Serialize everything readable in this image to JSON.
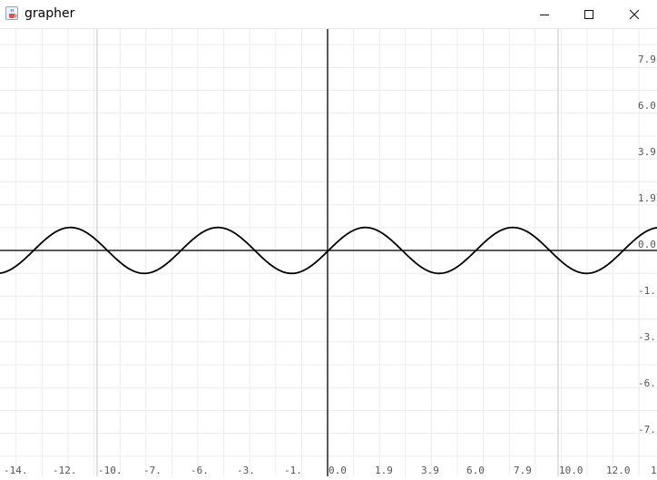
{
  "window": {
    "title": "grapher",
    "icons": {
      "app": "java-cup-icon",
      "minimize": "minimize-icon",
      "maximize": "maximize-icon",
      "close": "close-icon"
    }
  },
  "colors": {
    "curve": "#000000",
    "axis": "#222222",
    "major_grid": "#cfcfcf",
    "minor_grid": "#ececec",
    "label": "#555555"
  },
  "chart_data": {
    "type": "line",
    "title": "",
    "xlabel": "",
    "ylabel": "",
    "xlim": [
      -14.0,
      14.0
    ],
    "ylim": [
      -8.3,
      9.1
    ],
    "grid": true,
    "function": "y = sin(x)",
    "x_tick_labels": [
      "-14.",
      "-12.",
      "-10.",
      "-7.",
      "-6.",
      "-3.",
      "-1.",
      "0.0",
      "1.9",
      "3.9",
      "6.0",
      "7.9",
      "10.0",
      "12.0",
      "1"
    ],
    "y_tick_labels": [
      "7.9",
      "6.0",
      "3.9",
      "1.9",
      "0.0",
      "-1.",
      "-3.",
      "-6.",
      "-7."
    ],
    "series": [
      {
        "x": [
          -14.0,
          -13.0,
          -12.0,
          -11.0,
          -10.0,
          -9.0,
          -8.0,
          -7.0,
          -6.0,
          -5.0,
          -4.0,
          -3.0,
          -2.0,
          -1.0,
          0.0,
          1.0,
          2.0,
          3.0,
          4.0,
          5.0,
          6.0,
          7.0,
          8.0,
          9.0,
          10.0,
          11.0,
          12.0,
          13.0,
          14.0
        ],
        "values": [
          -0.99,
          -0.42,
          0.54,
          1.0,
          0.54,
          -0.41,
          -0.99,
          -0.66,
          0.28,
          0.96,
          0.76,
          -0.14,
          -0.91,
          -0.84,
          0.0,
          0.84,
          0.91,
          0.14,
          -0.76,
          -0.96,
          -0.28,
          0.66,
          0.99,
          0.41,
          -0.54,
          -1.0,
          -0.54,
          0.42,
          0.99
        ]
      }
    ]
  }
}
